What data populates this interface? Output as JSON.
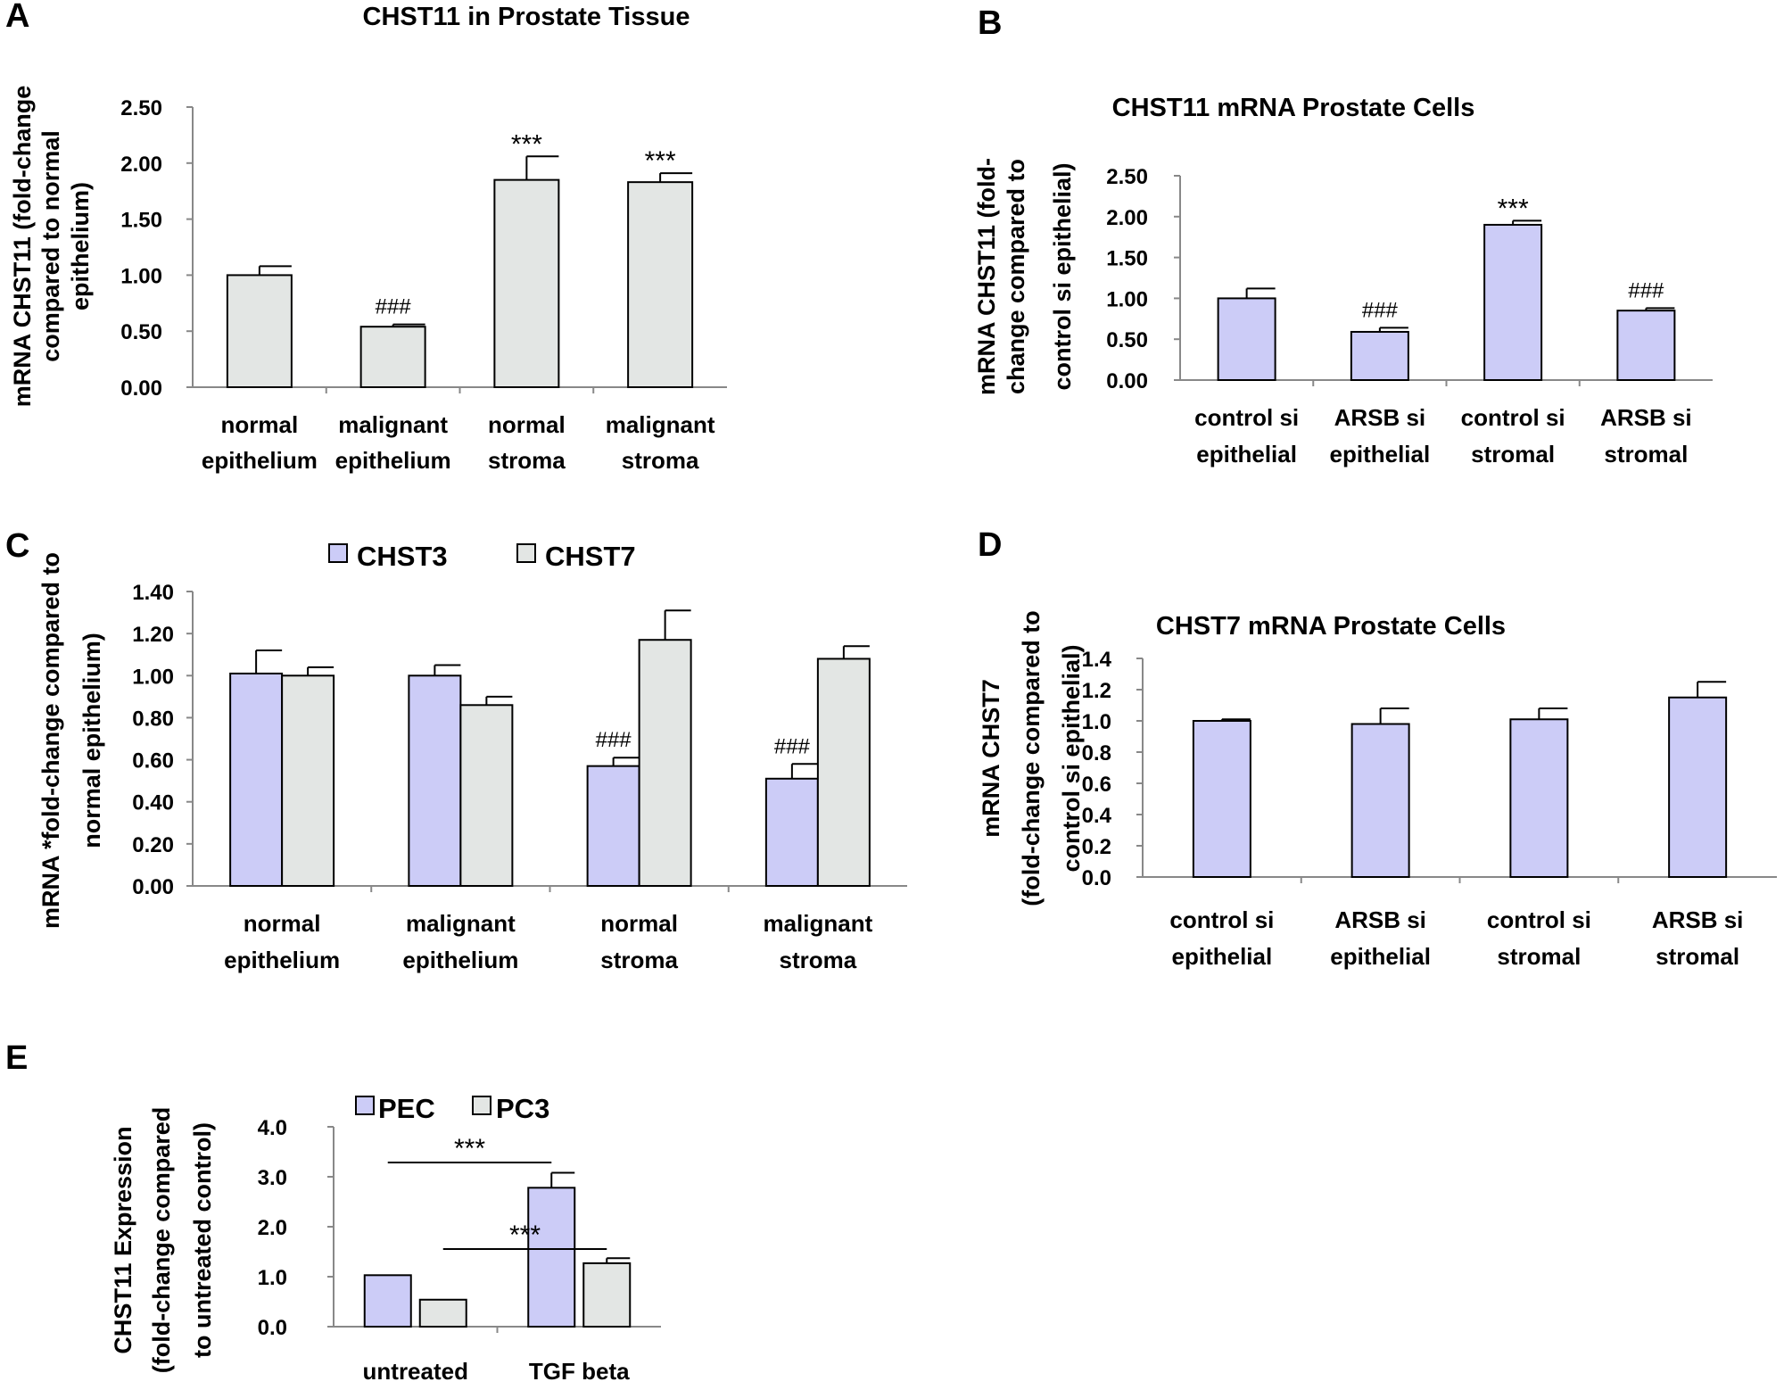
{
  "colors": {
    "blue": "#ccccf7",
    "grey": "#e3e6e4",
    "axis": "#888888",
    "outline": "#000000"
  },
  "chart_data": [
    {
      "panel": "A",
      "type": "bar",
      "title": "CHST11 in Prostate Tissue",
      "ylabel": [
        "mRNA CHST11 (fold-change",
        "compared to normal",
        "epithelium)"
      ],
      "categories": [
        [
          "normal",
          "epithelium"
        ],
        [
          "malignant",
          "epithelium"
        ],
        [
          "normal",
          "stroma"
        ],
        [
          "malignant",
          "stroma"
        ]
      ],
      "yticks": [
        "0.00",
        "0.50",
        "1.00",
        "1.50",
        "2.00",
        "2.50"
      ],
      "ylim": [
        0,
        2.5
      ],
      "series": [
        {
          "color": "grey",
          "values": [
            1.0,
            0.54,
            1.85,
            1.83
          ],
          "errors": [
            0.08,
            0.02,
            0.21,
            0.08
          ],
          "marks": [
            "",
            "###",
            "***",
            "***"
          ]
        }
      ]
    },
    {
      "panel": "B",
      "type": "bar",
      "title": "CHST11 mRNA Prostate Cells",
      "ylabel": [
        "mRNA CHST11 (fold-",
        "change compared to",
        "control si epithelial)"
      ],
      "categories": [
        [
          "control si",
          "epithelial"
        ],
        [
          "ARSB si",
          "epithelial"
        ],
        [
          "control si",
          "stromal"
        ],
        [
          "ARSB si",
          "stromal"
        ]
      ],
      "yticks": [
        "0.00",
        "0.50",
        "1.00",
        "1.50",
        "2.00",
        "2.50"
      ],
      "ylim": [
        0,
        2.5
      ],
      "series": [
        {
          "color": "blue",
          "values": [
            1.0,
            0.59,
            1.9,
            0.85
          ],
          "errors": [
            0.12,
            0.05,
            0.05,
            0.03
          ],
          "marks": [
            "",
            "###",
            "***",
            "###"
          ]
        }
      ]
    },
    {
      "panel": "C",
      "type": "bar",
      "title": "",
      "ylabel": [
        "mRNA *fold-change compared to",
        "normal epithelium)"
      ],
      "categories": [
        [
          "normal",
          "epithelium"
        ],
        [
          "malignant",
          "epithelium"
        ],
        [
          "normal",
          "stroma"
        ],
        [
          "malignant",
          "stroma"
        ]
      ],
      "yticks": [
        "0.00",
        "0.20",
        "0.40",
        "0.60",
        "0.80",
        "1.00",
        "1.20",
        "1.40"
      ],
      "ylim": [
        0,
        1.4
      ],
      "legend": [
        "CHST3",
        "CHST7"
      ],
      "series": [
        {
          "name": "CHST3",
          "color": "blue",
          "values": [
            1.01,
            1.0,
            0.57,
            0.51
          ],
          "errors": [
            0.11,
            0.05,
            0.04,
            0.07
          ],
          "marks": [
            "",
            "",
            "###",
            "###"
          ]
        },
        {
          "name": "CHST7",
          "color": "grey",
          "values": [
            1.0,
            0.86,
            1.17,
            1.08
          ],
          "errors": [
            0.04,
            0.04,
            0.14,
            0.06
          ],
          "marks": [
            "",
            "",
            "",
            ""
          ]
        }
      ]
    },
    {
      "panel": "D",
      "type": "bar",
      "title": "CHST7 mRNA Prostate Cells",
      "ylabel": [
        "mRNA CHST7",
        "(fold-change compared to",
        "control si epithelial)"
      ],
      "categories": [
        [
          "control si",
          "epithelial"
        ],
        [
          "ARSB si",
          "epithelial"
        ],
        [
          "control si",
          "stromal"
        ],
        [
          "ARSB si",
          "stromal"
        ]
      ],
      "yticks": [
        "0.0",
        "0.2",
        "0.4",
        "0.6",
        "0.8",
        "1.0",
        "1.2",
        "1.4"
      ],
      "ylim": [
        0,
        1.4
      ],
      "series": [
        {
          "color": "blue",
          "values": [
            1.0,
            0.98,
            1.01,
            1.15
          ],
          "errors": [
            0.01,
            0.1,
            0.07,
            0.1
          ],
          "marks": [
            "",
            "",
            "",
            ""
          ]
        }
      ]
    },
    {
      "panel": "E",
      "type": "bar",
      "title": "",
      "ylabel": [
        "CHST11 Expression",
        "(fold-change compared",
        "to untreated control)"
      ],
      "categories": [
        [
          "untreated"
        ],
        [
          "TGF beta"
        ]
      ],
      "yticks": [
        "0.0",
        "1.0",
        "2.0",
        "3.0",
        "4.0"
      ],
      "ylim": [
        0,
        4
      ],
      "legend": [
        "PEC",
        "PC3"
      ],
      "series": [
        {
          "name": "PEC",
          "color": "blue",
          "values": [
            1.03,
            2.78
          ],
          "errors": [
            0.0,
            0.3
          ],
          "marks": [
            "",
            ""
          ]
        },
        {
          "name": "PC3",
          "color": "grey",
          "values": [
            0.54,
            1.27
          ],
          "errors": [
            0.0,
            0.1
          ],
          "marks": [
            "",
            ""
          ]
        }
      ],
      "brackets": [
        {
          "from": [
            0,
            0
          ],
          "to": [
            1,
            0
          ],
          "label": "***"
        },
        {
          "from": [
            0,
            1
          ],
          "to": [
            1,
            1
          ],
          "label": "***"
        }
      ]
    }
  ]
}
